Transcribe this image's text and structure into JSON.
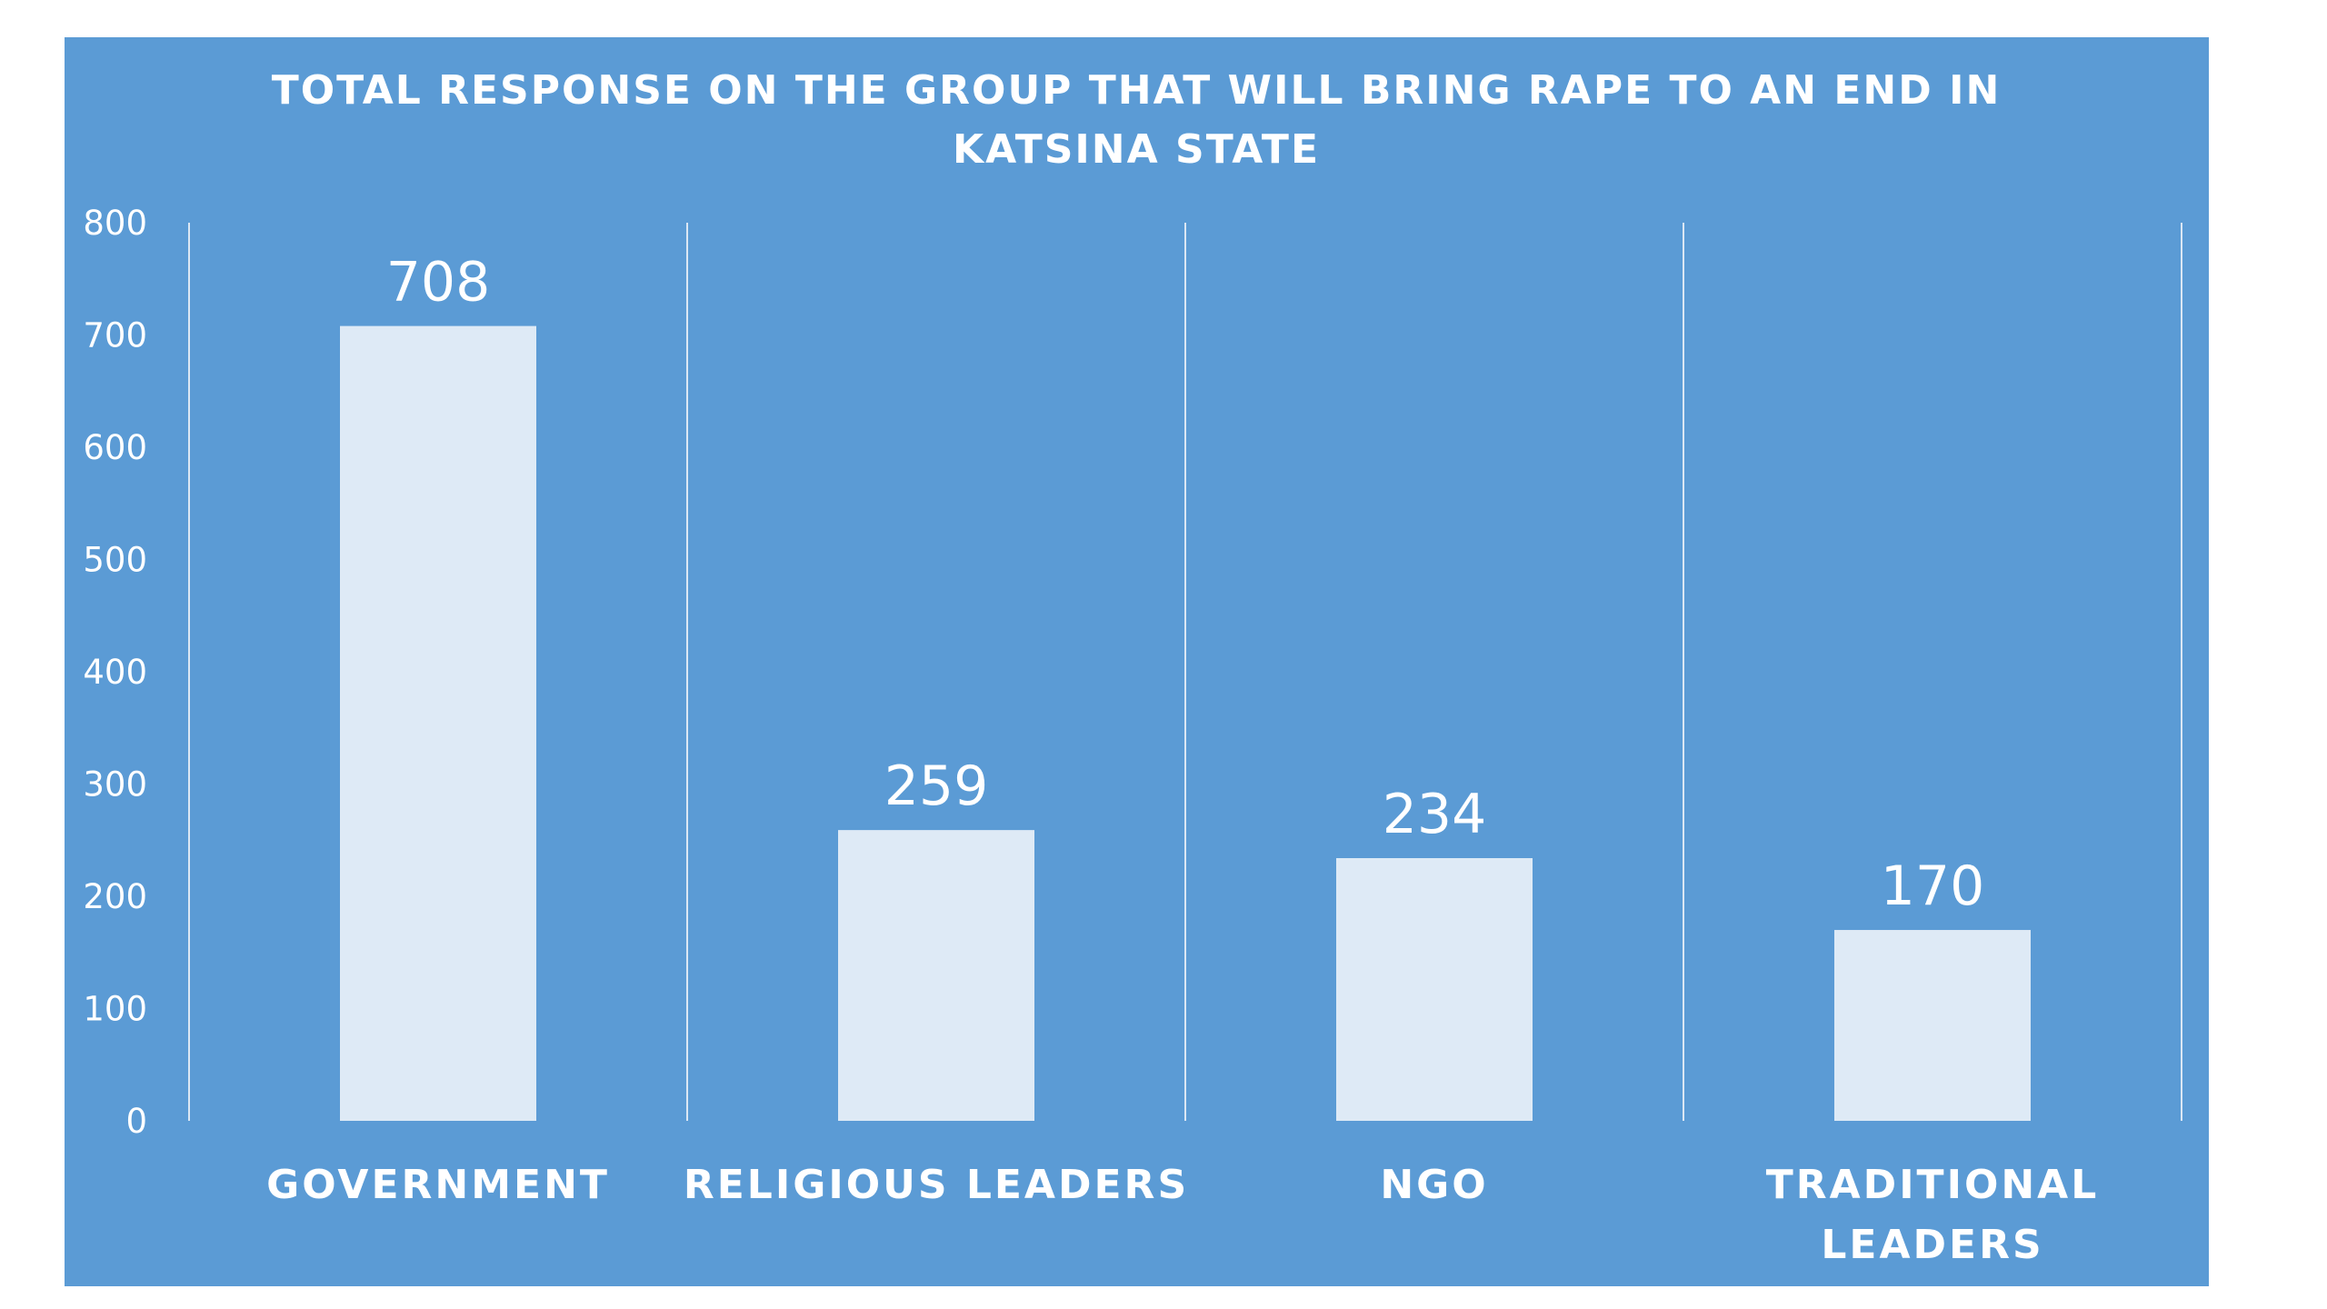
{
  "chart_data": {
    "type": "bar",
    "title": "TOTAL RESPONSE ON THE GROUP THAT WILL BRING RAPE TO AN END IN KATSINA STATE",
    "title_lines": [
      "TOTAL RESPONSE ON THE GROUP THAT WILL BRING RAPE TO AN END IN",
      "KATSINA STATE"
    ],
    "categories": [
      "GOVERNMENT",
      "RELIGIOUS LEADERS",
      "NGO",
      "TRADITIONAL LEADERS"
    ],
    "category_lines": [
      [
        "GOVERNMENT"
      ],
      [
        "RELIGIOUS LEADERS"
      ],
      [
        "NGO"
      ],
      [
        "TRADITIONAL",
        "LEADERS"
      ]
    ],
    "values": [
      708,
      259,
      234,
      170
    ],
    "data_labels": [
      "708",
      "259",
      "234",
      "170"
    ],
    "ylim": [
      0,
      800
    ],
    "yticks": [
      0,
      100,
      200,
      300,
      400,
      500,
      600,
      700,
      800
    ],
    "ytick_labels": [
      "0",
      "100",
      "200",
      "300",
      "400",
      "500",
      "600",
      "700",
      "800"
    ],
    "xlabel": "",
    "ylabel": "",
    "grid": "vertical category separators",
    "legend": "none",
    "colors": {
      "background": "#5b9bd5",
      "bar": "#deeaf6",
      "text": "#ffffff",
      "separator": "#dbe7f4"
    }
  }
}
